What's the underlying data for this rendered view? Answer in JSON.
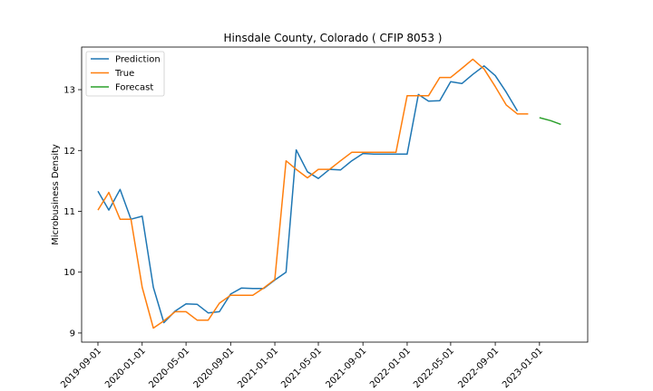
{
  "chart_data": {
    "type": "line",
    "title": "Hinsdale County, Colorado ( CFIP 8053 )",
    "xlabel": "",
    "ylabel": "Microbusiness Density",
    "xlim": [
      "2019-07-18",
      "2023-05-14"
    ],
    "ylim": [
      8.85,
      13.7
    ],
    "x_ticks": [
      "2019-09-01",
      "2020-01-01",
      "2020-05-01",
      "2020-09-01",
      "2021-01-01",
      "2021-05-01",
      "2021-09-01",
      "2022-01-01",
      "2022-05-01",
      "2022-09-01",
      "2023-01-01"
    ],
    "y_ticks": [
      9,
      10,
      11,
      12,
      13
    ],
    "y_tick_labels": [
      "9",
      "10",
      "11",
      "12",
      "13"
    ],
    "legend_position": "top-left",
    "grid": false,
    "series": [
      {
        "name": "Prediction",
        "color": "#1f77b4",
        "x": [
          "2019-09-01",
          "2019-10-01",
          "2019-11-01",
          "2019-12-01",
          "2020-01-01",
          "2020-02-01",
          "2020-03-01",
          "2020-04-01",
          "2020-05-01",
          "2020-06-01",
          "2020-07-01",
          "2020-08-01",
          "2020-09-01",
          "2020-10-01",
          "2020-11-01",
          "2020-12-01",
          "2021-01-01",
          "2021-02-01",
          "2021-03-01",
          "2021-04-01",
          "2021-05-01",
          "2021-06-01",
          "2021-07-01",
          "2021-08-01",
          "2021-09-01",
          "2021-10-01",
          "2021-11-01",
          "2021-12-01",
          "2022-01-01",
          "2022-02-01",
          "2022-03-01",
          "2022-04-01",
          "2022-05-01",
          "2022-06-01",
          "2022-07-01",
          "2022-08-01",
          "2022-09-01",
          "2022-10-01",
          "2022-11-01"
        ],
        "values": [
          11.33,
          11.02,
          11.36,
          10.87,
          10.92,
          9.75,
          9.17,
          9.36,
          9.48,
          9.47,
          9.33,
          9.35,
          9.64,
          9.74,
          9.73,
          9.73,
          9.87,
          10.0,
          12.01,
          11.65,
          11.54,
          11.69,
          11.68,
          11.83,
          11.95,
          11.94,
          11.94,
          11.94,
          11.94,
          12.92,
          12.81,
          12.82,
          13.13,
          13.1,
          13.25,
          13.39,
          13.23,
          12.96,
          12.65
        ]
      },
      {
        "name": "True",
        "color": "#ff7f0e",
        "x": [
          "2019-09-01",
          "2019-10-01",
          "2019-11-01",
          "2019-12-01",
          "2020-01-01",
          "2020-02-01",
          "2020-03-01",
          "2020-04-01",
          "2020-05-01",
          "2020-06-01",
          "2020-07-01",
          "2020-08-01",
          "2020-09-01",
          "2020-10-01",
          "2020-11-01",
          "2020-12-01",
          "2021-01-01",
          "2021-02-01",
          "2021-03-01",
          "2021-04-01",
          "2021-05-01",
          "2021-06-01",
          "2021-07-01",
          "2021-08-01",
          "2021-09-01",
          "2021-10-01",
          "2021-11-01",
          "2021-12-01",
          "2022-01-01",
          "2022-02-01",
          "2022-03-01",
          "2022-04-01",
          "2022-05-01",
          "2022-06-01",
          "2022-07-01",
          "2022-08-01",
          "2022-09-01",
          "2022-10-01",
          "2022-11-01",
          "2022-12-01"
        ],
        "values": [
          11.02,
          11.31,
          10.87,
          10.87,
          9.75,
          9.08,
          9.2,
          9.35,
          9.35,
          9.21,
          9.21,
          9.49,
          9.62,
          9.62,
          9.62,
          9.74,
          9.88,
          11.83,
          11.69,
          11.55,
          11.69,
          11.69,
          11.83,
          11.97,
          11.97,
          11.97,
          11.97,
          11.97,
          12.9,
          12.9,
          12.9,
          13.2,
          13.2,
          13.35,
          13.5,
          13.34,
          13.05,
          12.75,
          12.6,
          12.6
        ]
      },
      {
        "name": "Forecast",
        "color": "#2ca02c",
        "x": [
          "2023-01-01",
          "2023-02-01",
          "2023-03-01"
        ],
        "values": [
          12.54,
          12.49,
          12.43
        ]
      }
    ]
  }
}
